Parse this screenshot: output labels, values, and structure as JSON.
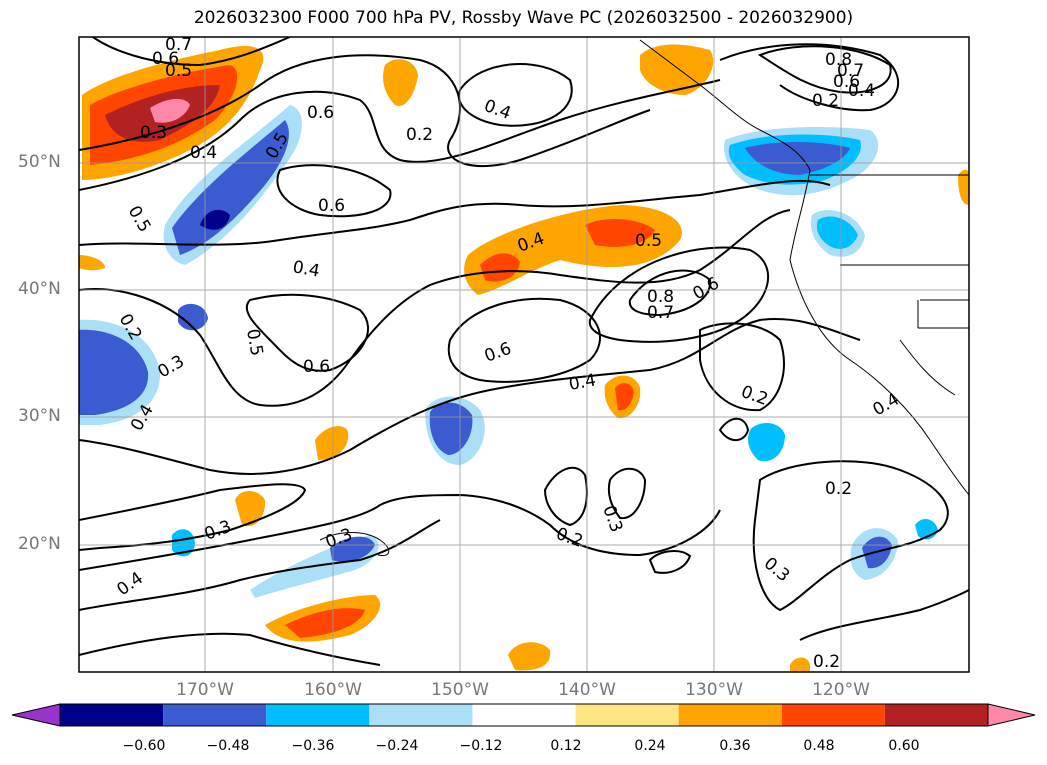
{
  "title": "2026032300 F000 700 hPa PV, Rossby Wave PC (2026032500 - 2026032900)",
  "lat_labels": [
    "50°N",
    "40°N",
    "30°N",
    "20°N"
  ],
  "lon_labels": [
    "170°W",
    "160°W",
    "150°W",
    "140°W",
    "130°W",
    "120°W"
  ],
  "colorbar": {
    "ticks": [
      "−0.60",
      "−0.48",
      "−0.36",
      "−0.24",
      "−0.12",
      "0.12",
      "0.24",
      "0.36",
      "0.48",
      "0.60"
    ],
    "colors": [
      "#9933cc",
      "#00008b",
      "#3b5bd1",
      "#00bfff",
      "#aadff7",
      "#ffffff",
      "#ffe680",
      "#ffa500",
      "#ff4500",
      "#b22222",
      "#ff88aa"
    ]
  },
  "contour_labels": [
    "0.7",
    "0.6",
    "0.5",
    "0.3",
    "0.4",
    "0.5",
    "0.5",
    "0.6",
    "0.2",
    "0.4",
    "0.6",
    "0.4",
    "0.4",
    "0.5",
    "0.8",
    "0.7",
    "0.6",
    "0.2",
    "0.4",
    "0.2",
    "0.3",
    "0.4",
    "0.5",
    "0.6",
    "0.6",
    "0.8",
    "0.7",
    "0.6",
    "0.4",
    "0.2",
    "0.4",
    "0.2",
    "0.3",
    "0.2",
    "0.3",
    "0.3",
    "0.4",
    "0.2"
  ]
}
